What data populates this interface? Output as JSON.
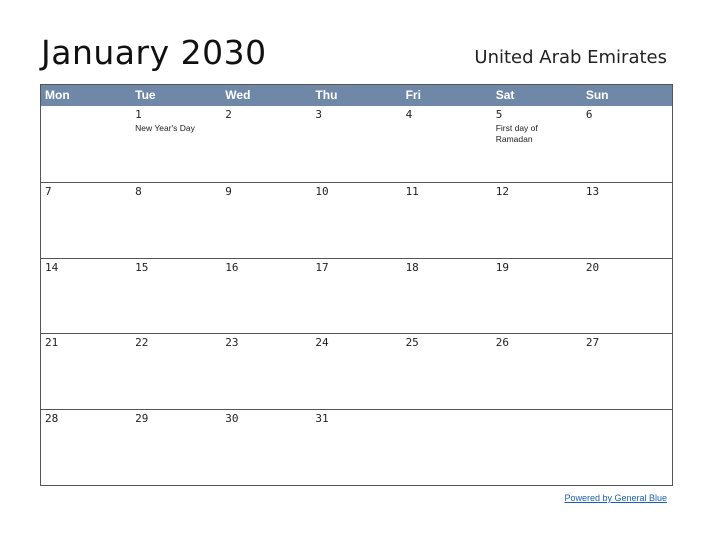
{
  "title": "January 2030",
  "country": "United Arab Emirates",
  "weekdays": [
    "Mon",
    "Tue",
    "Wed",
    "Thu",
    "Fri",
    "Sat",
    "Sun"
  ],
  "weeks": [
    [
      {
        "day": "",
        "event": ""
      },
      {
        "day": "1",
        "event": "New Year's Day"
      },
      {
        "day": "2",
        "event": ""
      },
      {
        "day": "3",
        "event": ""
      },
      {
        "day": "4",
        "event": ""
      },
      {
        "day": "5",
        "event": "First day of Ramadan"
      },
      {
        "day": "6",
        "event": ""
      }
    ],
    [
      {
        "day": "7",
        "event": ""
      },
      {
        "day": "8",
        "event": ""
      },
      {
        "day": "9",
        "event": ""
      },
      {
        "day": "10",
        "event": ""
      },
      {
        "day": "11",
        "event": ""
      },
      {
        "day": "12",
        "event": ""
      },
      {
        "day": "13",
        "event": ""
      }
    ],
    [
      {
        "day": "14",
        "event": ""
      },
      {
        "day": "15",
        "event": ""
      },
      {
        "day": "16",
        "event": ""
      },
      {
        "day": "17",
        "event": ""
      },
      {
        "day": "18",
        "event": ""
      },
      {
        "day": "19",
        "event": ""
      },
      {
        "day": "20",
        "event": ""
      }
    ],
    [
      {
        "day": "21",
        "event": ""
      },
      {
        "day": "22",
        "event": ""
      },
      {
        "day": "23",
        "event": ""
      },
      {
        "day": "24",
        "event": ""
      },
      {
        "day": "25",
        "event": ""
      },
      {
        "day": "26",
        "event": ""
      },
      {
        "day": "27",
        "event": ""
      }
    ],
    [
      {
        "day": "28",
        "event": ""
      },
      {
        "day": "29",
        "event": ""
      },
      {
        "day": "30",
        "event": ""
      },
      {
        "day": "31",
        "event": ""
      },
      {
        "day": "",
        "event": ""
      },
      {
        "day": "",
        "event": ""
      },
      {
        "day": "",
        "event": ""
      }
    ]
  ],
  "footer_link": "Powered by General Blue",
  "colors": {
    "header_bg": "#7088a8",
    "link": "#1a5fb4"
  }
}
